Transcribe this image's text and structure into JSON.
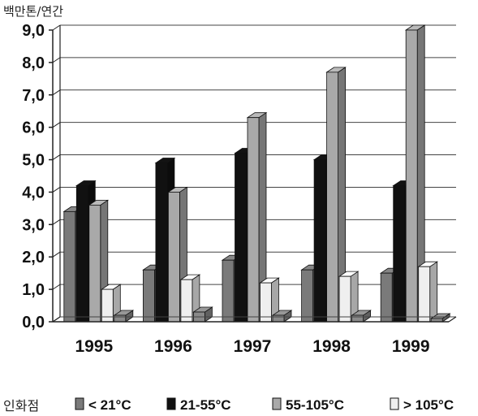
{
  "chart_data": {
    "type": "bar",
    "style": "3d-clustered",
    "ylabel": "백만톤/연간",
    "categories": [
      "1995",
      "1996",
      "1997",
      "1998",
      "1999"
    ],
    "series": [
      {
        "name": "< 21°C",
        "color": "#7a7a7a",
        "values": [
          3.4,
          1.6,
          1.9,
          1.6,
          1.5
        ]
      },
      {
        "name": "21-55°C",
        "color": "#111111",
        "values": [
          4.2,
          4.9,
          5.2,
          5.0,
          4.2
        ]
      },
      {
        "name": "55-105°C",
        "color": "#a9a9a9",
        "values": [
          3.6,
          4.0,
          6.3,
          7.7,
          9.0
        ]
      },
      {
        "name": "> 105°C",
        "color": "#efefef",
        "values": [
          1.0,
          1.3,
          1.2,
          1.4,
          1.7
        ]
      },
      {
        "name": "",
        "color": "#8a8a8a",
        "values": [
          0.2,
          0.3,
          0.2,
          0.2,
          0.1
        ]
      }
    ],
    "ylim": [
      0,
      9
    ],
    "yticks": [
      "0,0",
      "1,0",
      "2,0",
      "3,0",
      "4,0",
      "5,0",
      "6,0",
      "7,0",
      "8,0",
      "9,0"
    ],
    "grid": true,
    "legend": {
      "title": "인화점",
      "placement": "bottom"
    }
  }
}
